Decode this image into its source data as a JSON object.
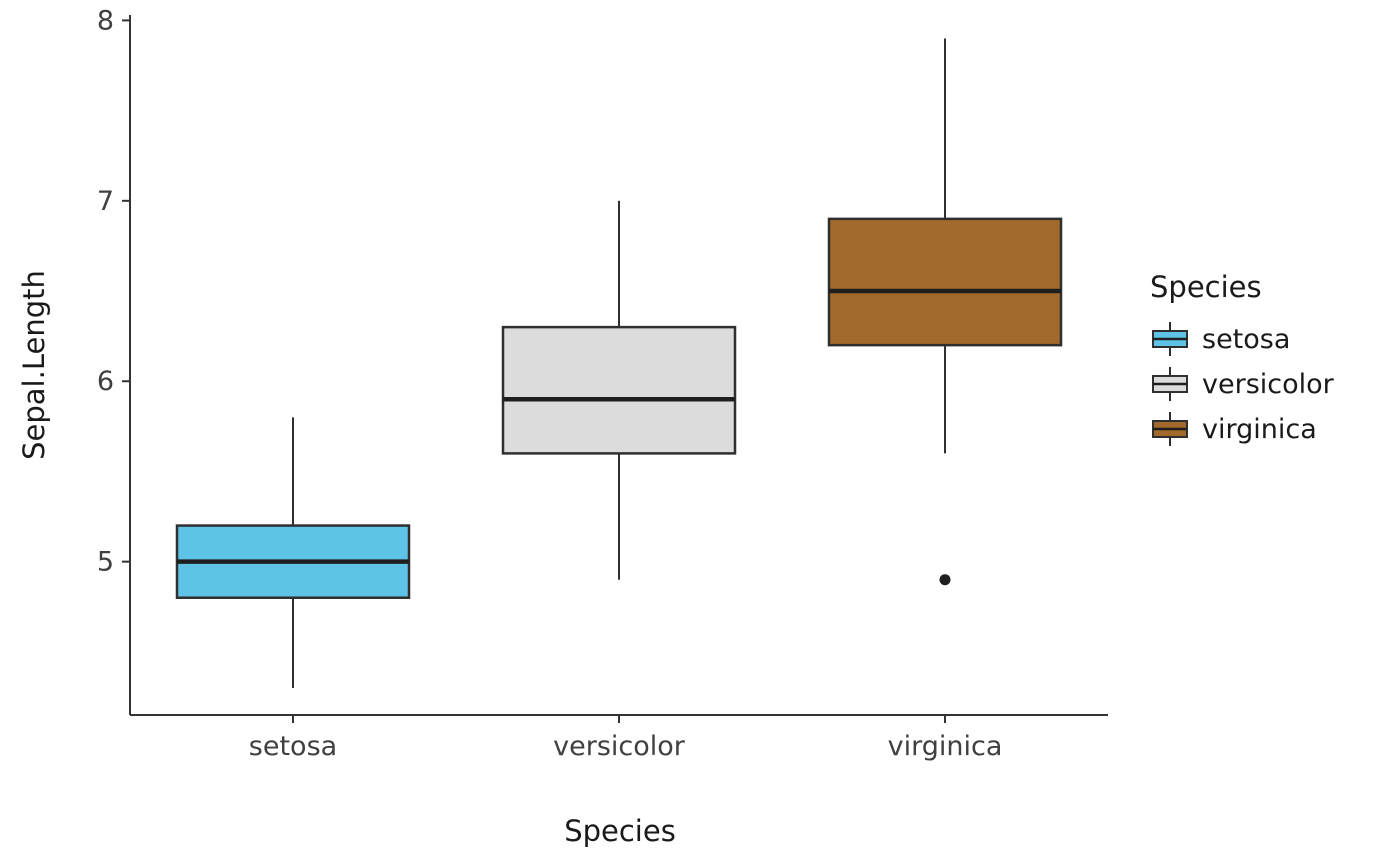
{
  "figure": {
    "background": "#ffffff"
  },
  "chart_data": {
    "type": "boxplot",
    "title": "",
    "xlabel": "Species",
    "ylabel": "Sepal.Length",
    "ylim": [
      4.15,
      8.03
    ],
    "yticks": [
      5,
      6,
      7,
      8
    ],
    "categories": [
      "setosa",
      "versicolor",
      "virginica"
    ],
    "series": [
      {
        "name": "setosa",
        "fill": "#5FC2E7",
        "min": 4.3,
        "q1": 4.8,
        "median": 5.0,
        "q3": 5.2,
        "max": 5.8,
        "outliers": []
      },
      {
        "name": "versicolor",
        "fill": "#DCDCDC",
        "min": 4.9,
        "q1": 5.6,
        "median": 5.9,
        "q3": 6.3,
        "max": 7.0,
        "outliers": []
      },
      {
        "name": "virginica",
        "fill": "#A2692C",
        "min": 5.6,
        "q1": 6.2,
        "median": 6.5,
        "q3": 6.9,
        "max": 7.9,
        "outliers": [
          4.9
        ]
      }
    ],
    "legend": {
      "title": "Species",
      "position": "right",
      "entries": [
        "setosa",
        "versicolor",
        "virginica"
      ]
    },
    "grid": false,
    "axis_color": "#333333",
    "box_stroke": "#2f2f2f",
    "median_color": "#1f1f1f",
    "outlier_color": "#1f1f1f",
    "tick_label_color": "#404040"
  }
}
